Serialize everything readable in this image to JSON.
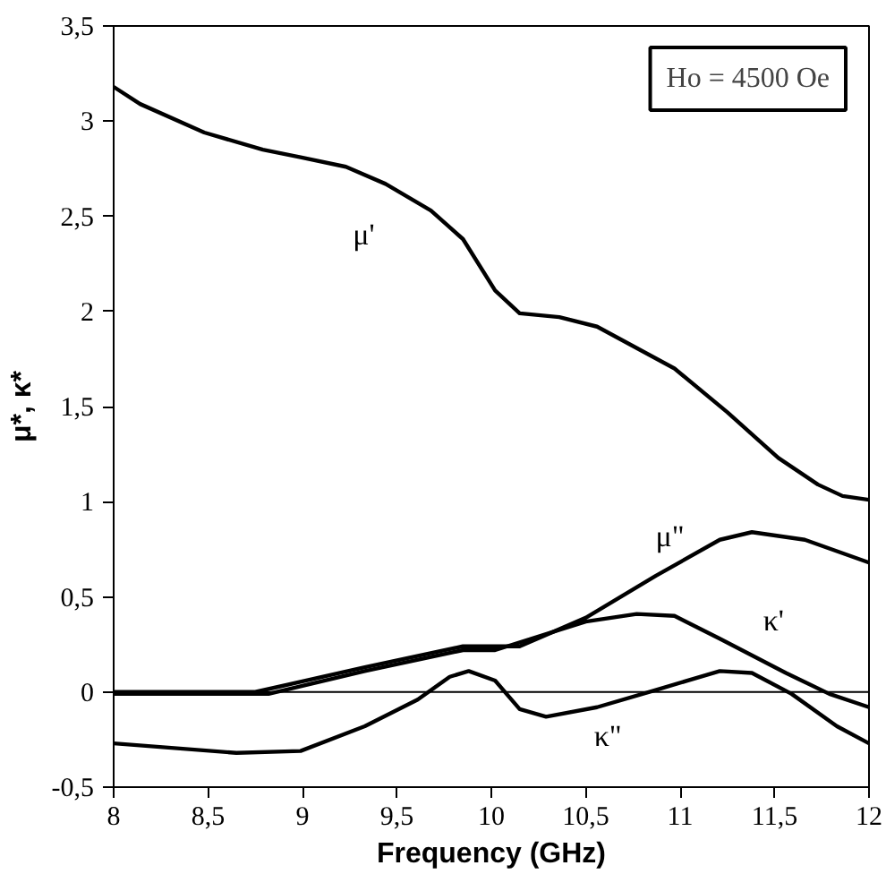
{
  "chart_data": {
    "type": "line",
    "xlabel": "Frequency (GHz)",
    "ylabel": "μ*, κ*",
    "xlim": [
      8,
      12
    ],
    "ylim": [
      -0.5,
      3.5
    ],
    "xticks": [
      8,
      {
        "value": 8.5,
        "label": "8,5"
      },
      9,
      {
        "value": 9.5,
        "label": "9,5"
      },
      10,
      {
        "value": 10.5,
        "label": "10,5"
      },
      11,
      {
        "value": 11.5,
        "label": "11,5"
      },
      12
    ],
    "yticks": [
      {
        "value": -0.5,
        "label": "-0,5"
      },
      0,
      {
        "value": 0.5,
        "label": "0,5"
      },
      1,
      {
        "value": 1.5,
        "label": "1,5"
      },
      2,
      {
        "value": 2.5,
        "label": "2,5"
      },
      3,
      {
        "value": 3.5,
        "label": "3,5"
      }
    ],
    "grid": false,
    "legend": false,
    "marker": "none",
    "line_style": "solid",
    "ref_lines": [
      {
        "axis": "y",
        "value": 0,
        "color": "#000000"
      }
    ],
    "annotations": [
      "Ho = 4500 Oe"
    ],
    "series": [
      {
        "name": "μ'",
        "color": "#000000",
        "x": [
          8,
          8.14,
          8.48,
          8.79,
          8.99,
          9.23,
          9.44,
          9.68,
          9.85,
          10.02,
          10.15,
          10.36,
          10.56,
          10.97,
          11.25,
          11.52,
          11.73,
          11.86,
          12
        ],
        "values": [
          3.18,
          3.09,
          2.94,
          2.85,
          2.81,
          2.76,
          2.67,
          2.53,
          2.38,
          2.11,
          1.99,
          1.97,
          1.92,
          1.7,
          1.47,
          1.23,
          1.09,
          1.03,
          1.01
        ]
      },
      {
        "name": "μ\"",
        "color": "#000000",
        "x": [
          8,
          8.75,
          9.33,
          9.85,
          10.15,
          10.5,
          10.87,
          11.21,
          11.38,
          11.66,
          12
        ],
        "values": [
          0,
          0,
          0.13,
          0.24,
          0.24,
          0.39,
          0.61,
          0.8,
          0.84,
          0.8,
          0.68
        ]
      },
      {
        "name": "κ'",
        "color": "#000000",
        "x": [
          8,
          8.82,
          9.33,
          9.85,
          10.02,
          10.5,
          10.77,
          10.97,
          11.21,
          11.56,
          11.79,
          12
        ],
        "values": [
          -0.01,
          -0.01,
          0.11,
          0.22,
          0.22,
          0.37,
          0.41,
          0.4,
          0.28,
          0.1,
          -0.01,
          -0.08
        ]
      },
      {
        "name": "κ\"",
        "color": "#000000",
        "x": [
          8,
          8.65,
          8.99,
          9.33,
          9.61,
          9.78,
          9.88,
          10.02,
          10.15,
          10.29,
          10.56,
          10.87,
          11.21,
          11.38,
          11.59,
          11.83,
          12
        ],
        "values": [
          -0.27,
          -0.32,
          -0.31,
          -0.18,
          -0.04,
          0.08,
          0.11,
          0.06,
          -0.09,
          -0.13,
          -0.08,
          0.01,
          0.11,
          0.1,
          -0.01,
          -0.18,
          -0.27
        ]
      }
    ]
  }
}
